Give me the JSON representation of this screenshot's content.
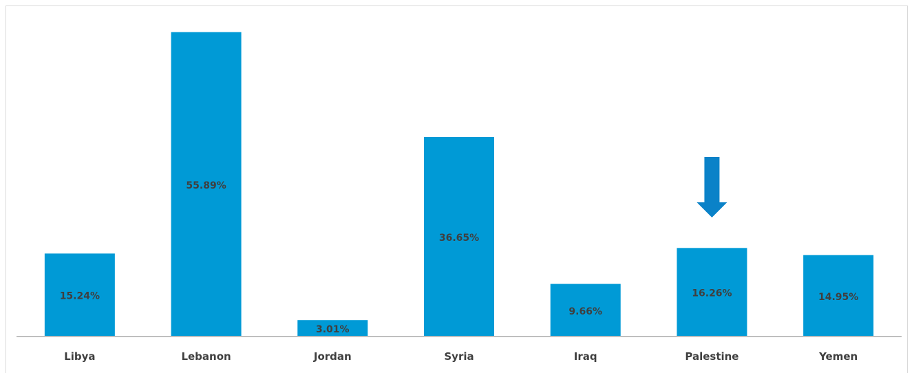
{
  "chart_data": {
    "type": "bar",
    "title": "",
    "xlabel": "",
    "ylabel": "",
    "categories": [
      "Libya",
      "Lebanon",
      "Jordan",
      "Syria",
      "Iraq",
      "Palestine",
      "Yemen"
    ],
    "values": [
      15.24,
      55.89,
      3.01,
      36.65,
      9.66,
      16.26,
      14.95
    ],
    "value_labels": [
      "15.24%",
      "55.89%",
      "3.01%",
      "36.65%",
      "9.66%",
      "16.26%",
      "14.95%"
    ],
    "ylim": [
      0,
      58
    ],
    "grid": false,
    "legend": "none",
    "highlight": {
      "category": "Palestine",
      "marker": "down-arrow"
    },
    "colors": {
      "bar": "#009ad6",
      "label": "#3f3f3f",
      "axis": "#bfbfbf",
      "arrow": "#0a82c8"
    }
  }
}
